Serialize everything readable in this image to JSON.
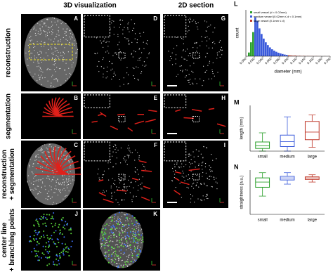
{
  "headers": {
    "col_3d": "3D visualization",
    "col_2d": "2D section"
  },
  "rows": [
    [
      "reconstruction"
    ],
    [
      "segmentation"
    ],
    [
      "reconstruction",
      "+ segmentation"
    ],
    [
      "center line",
      "+ branching points"
    ]
  ],
  "panel_labels": [
    "A",
    "B",
    "C",
    "D",
    "E",
    "F",
    "G",
    "H",
    "I",
    "J",
    "K"
  ],
  "chart_data": [
    {
      "type": "histogram",
      "letter": "L",
      "xlabel": "diameter (mm)",
      "ylabel": "count",
      "xlim": [
        0,
        0.2
      ],
      "xticks": [
        {
          "value": 0,
          "label": "0.000"
        },
        {
          "value": 0.02,
          "label": "0.020"
        },
        {
          "value": 0.04,
          "label": "0.040"
        },
        {
          "value": 0.06,
          "label": "0.060"
        },
        {
          "value": 0.08,
          "label": "0.080"
        },
        {
          "value": 0.1,
          "label": "0.100"
        },
        {
          "value": 0.12,
          "label": "0.120"
        },
        {
          "value": 0.14,
          "label": "0.140"
        },
        {
          "value": 0.16,
          "label": "0.160"
        },
        {
          "value": 0.18,
          "label": "0.180"
        },
        {
          "value": 0.2,
          "label": "0.200"
        }
      ],
      "ylim": [
        0,
        500
      ],
      "series": [
        {
          "name": "small vessel (d < 0.02mm)",
          "color": "#2ca02c",
          "bins": [
            0,
            0.005,
            0.01,
            0.015,
            0.02
          ],
          "values": [
            0,
            40,
            150,
            260
          ]
        },
        {
          "name": "medium vessel (0.02mm ≤ d < 0.1mm)",
          "color": "#3b5bdb",
          "bins": [
            0.02,
            0.025,
            0.03,
            0.035,
            0.04,
            0.045,
            0.05,
            0.055,
            0.06,
            0.065,
            0.07,
            0.075,
            0.08,
            0.085,
            0.09,
            0.095,
            0.1
          ],
          "values": [
            420,
            380,
            300,
            240,
            190,
            150,
            120,
            95,
            75,
            60,
            48,
            38,
            30,
            24,
            18,
            14
          ]
        },
        {
          "name": "large vessel (0.1mm ≤ d)",
          "color": "#c0392b",
          "bins": [
            0.1,
            0.105,
            0.11,
            0.115,
            0.12,
            0.125,
            0.13,
            0.135,
            0.14,
            0.145,
            0.15,
            0.155,
            0.16,
            0.165,
            0.17,
            0.175,
            0.18,
            0.185,
            0.19,
            0.195,
            0.2
          ],
          "values": [
            10,
            8,
            6,
            7,
            4,
            5,
            3,
            4,
            2,
            3,
            2,
            2,
            1,
            2,
            1,
            1,
            0,
            1,
            0,
            1
          ]
        }
      ]
    },
    {
      "type": "box",
      "letter": "M",
      "ylabel": "length (mm)",
      "ylim": [
        0,
        1.2
      ],
      "categories": [
        "small",
        "medium",
        "large"
      ],
      "colors": [
        "#2ca02c",
        "#3b5bdb",
        "#c0392b"
      ],
      "boxes": [
        {
          "min": 0,
          "q1": 0.07,
          "median": 0.14,
          "q3": 0.24,
          "max": 0.48
        },
        {
          "min": 0,
          "q1": 0.12,
          "median": 0.25,
          "q3": 0.42,
          "max": 0.9
        },
        {
          "min": 0.1,
          "q1": 0.3,
          "median": 0.5,
          "q3": 0.78,
          "max": 0.95
        }
      ]
    },
    {
      "type": "box",
      "letter": "N",
      "ylabel": "straightness (a.u.)",
      "ylim": [
        0.2,
        1.05
      ],
      "categories": [
        "small",
        "medium",
        "large"
      ],
      "colors": [
        "#2ca02c",
        "#3b5bdb",
        "#c0392b"
      ],
      "boxes": [
        {
          "min": 0.55,
          "q1": 0.72,
          "median": 0.82,
          "q3": 0.9,
          "max": 1.0
        },
        {
          "min": 0.78,
          "q1": 0.86,
          "median": 0.9,
          "q3": 0.93,
          "max": 1.0
        },
        {
          "min": 0.82,
          "q1": 0.87,
          "median": 0.9,
          "q3": 0.92,
          "max": 0.96
        }
      ]
    }
  ]
}
